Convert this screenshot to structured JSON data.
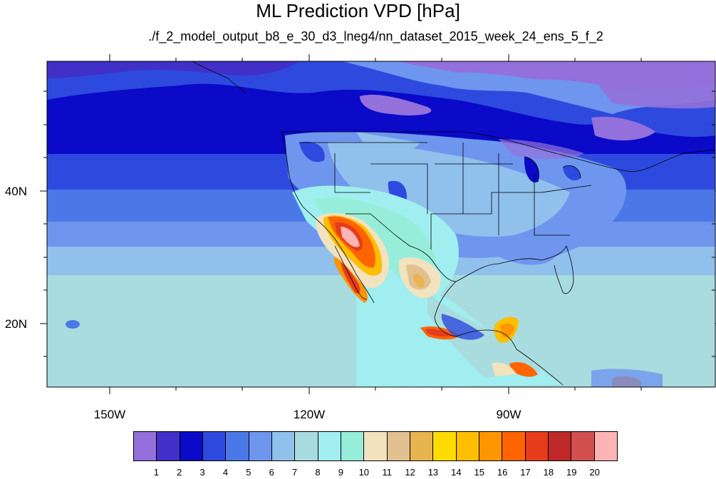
{
  "title": "ML Prediction VPD [hPa]",
  "subtitle": "./f_2_model_output_b8_e_30_d3_lneg4/nn_dataset_2015_week_24_ens_5_f_2",
  "lat_labels": [
    "40N",
    "20N"
  ],
  "lon_labels": [
    "150W",
    "120W",
    "90W"
  ],
  "colorbar": {
    "labels": [
      "1",
      "2",
      "3",
      "4",
      "5",
      "6",
      "7",
      "8",
      "9",
      "10",
      "11",
      "12",
      "13",
      "14",
      "15",
      "16",
      "17",
      "18",
      "19",
      "20"
    ],
    "colors": [
      "#9370DB",
      "#4030C8",
      "#0A0AC8",
      "#2E4ADE",
      "#4A78E6",
      "#6E96EE",
      "#90C0EC",
      "#A8DCDE",
      "#A0EEF0",
      "#96EEDA",
      "#F2E2BE",
      "#E2C090",
      "#E8B450",
      "#FFDC00",
      "#FFBE00",
      "#FF9600",
      "#FF6400",
      "#E63C1C",
      "#BE2828",
      "#D25050",
      "#FFB4B4"
    ]
  }
}
